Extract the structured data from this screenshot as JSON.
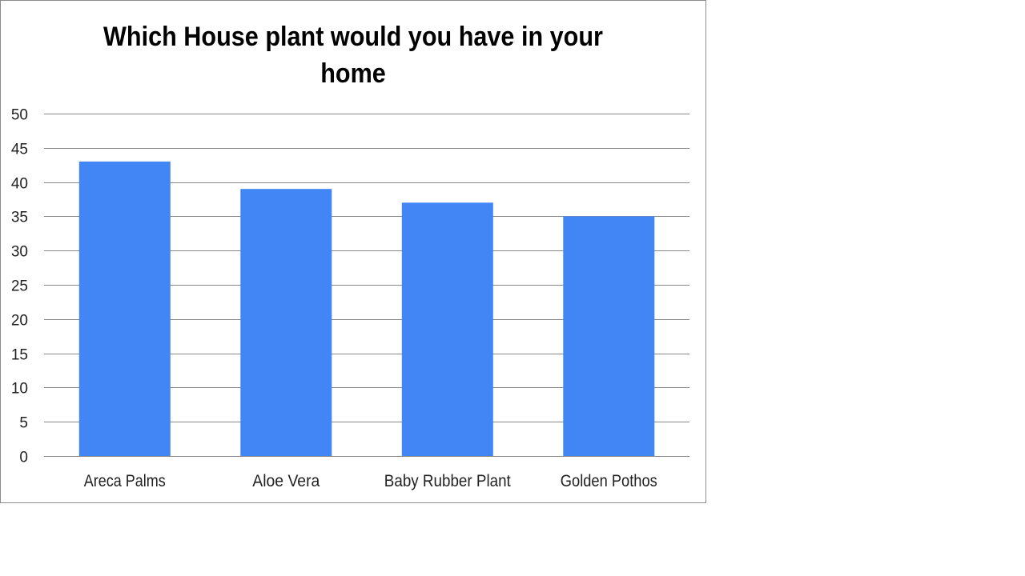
{
  "chart_data": {
    "type": "bar",
    "title": "Which House plant would you have in your home",
    "categories": [
      "Areca Palms",
      "Aloe Vera",
      "Baby Rubber Plant",
      "Golden Pothos"
    ],
    "values": [
      43,
      39,
      37,
      35
    ],
    "xlabel": "",
    "ylabel": "",
    "ylim": [
      0,
      50
    ],
    "yticks": [
      0,
      5,
      10,
      15,
      20,
      25,
      30,
      35,
      40,
      45,
      50
    ],
    "grid": true,
    "legend": "none",
    "bar_color": "#4285f4",
    "grid_color": "#888888"
  }
}
